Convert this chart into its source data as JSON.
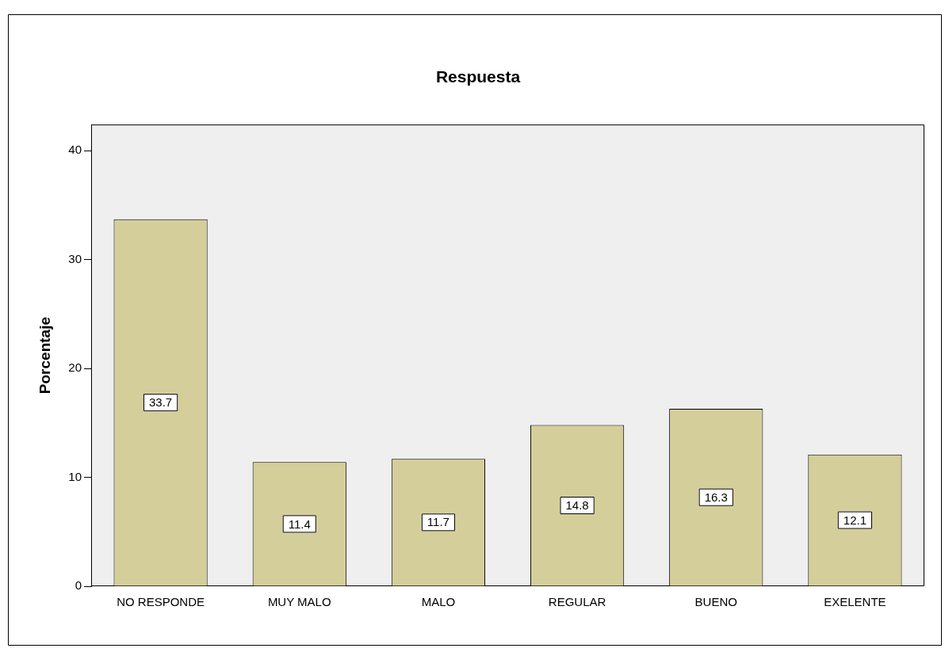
{
  "chart_data": {
    "type": "bar",
    "title": "Respuesta",
    "ylabel": "Porcentaje",
    "categories": [
      "NO RESPONDE",
      "MUY MALO",
      "MALO",
      "REGULAR",
      "BUENO",
      "EXELENTE"
    ],
    "values": [
      33.7,
      11.4,
      11.7,
      14.8,
      16.3,
      12.1
    ],
    "color": "#d4ce9b",
    "ylim": [
      0,
      42.4
    ],
    "yticks": [
      0,
      10,
      20,
      30,
      40
    ],
    "grid": false,
    "legend": false,
    "data_labels": true
  }
}
